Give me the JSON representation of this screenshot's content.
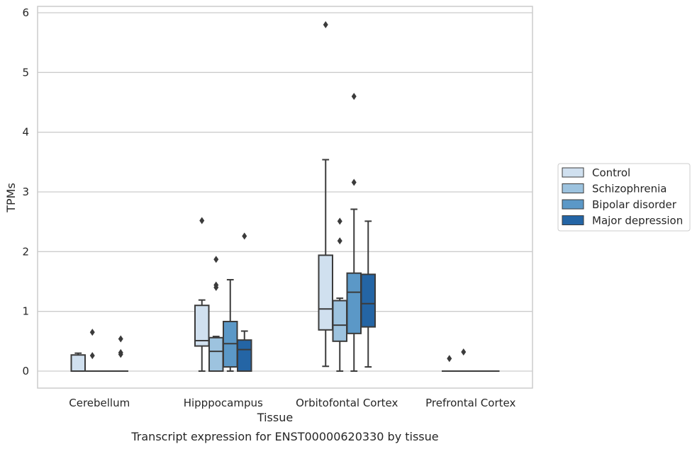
{
  "chart_data": {
    "type": "box",
    "caption": "Transcript expression for ENST00000620330 by tissue",
    "xlabel": "Tissue",
    "ylabel": "TPMs",
    "ylim": [
      -0.28,
      6.1
    ],
    "yticks": [
      0,
      1,
      2,
      3,
      4,
      5,
      6
    ],
    "grid": true,
    "legend_position": "right",
    "categories": [
      "Cerebellum",
      "Hipppocampus",
      "Orbitofontal Cortex",
      "Prefrontal Cortex"
    ],
    "series": [
      {
        "name": "Control",
        "color": "#d0e0ef",
        "boxes": [
          {
            "min": 0,
            "q1": 0,
            "median": 0,
            "q3": 0.27,
            "max": 0.3,
            "outliers": []
          },
          {
            "min": 0,
            "q1": 0.42,
            "median": 0.51,
            "q3": 1.1,
            "max": 1.19,
            "outliers": [
              2.52
            ]
          },
          {
            "min": 0.08,
            "q1": 0.69,
            "median": 1.04,
            "q3": 1.94,
            "max": 3.54,
            "outliers": [
              5.8
            ]
          },
          {
            "min": 0,
            "q1": 0,
            "median": 0,
            "q3": 0,
            "max": 0,
            "outliers": [
              0.21
            ]
          }
        ]
      },
      {
        "name": "Schizophrenia",
        "color": "#9dc3df",
        "boxes": [
          {
            "min": 0,
            "q1": 0,
            "median": 0,
            "q3": 0,
            "max": 0,
            "outliers": [
              0.65,
              0.26
            ]
          },
          {
            "min": 0,
            "q1": 0,
            "median": 0.33,
            "q3": 0.56,
            "max": 0.58,
            "outliers": [
              1.87,
              1.44,
              1.4
            ]
          },
          {
            "min": 0,
            "q1": 0.5,
            "median": 0.77,
            "q3": 1.18,
            "max": 1.22,
            "outliers": [
              2.51,
              2.18
            ]
          },
          {
            "min": 0,
            "q1": 0,
            "median": 0,
            "q3": 0,
            "max": 0,
            "outliers": [
              0.32
            ]
          }
        ]
      },
      {
        "name": "Bipolar disorder",
        "color": "#5b98c7",
        "boxes": [
          {
            "min": 0,
            "q1": 0,
            "median": 0,
            "q3": 0,
            "max": 0,
            "outliers": []
          },
          {
            "min": 0,
            "q1": 0.07,
            "median": 0.46,
            "q3": 0.83,
            "max": 1.53,
            "outliers": []
          },
          {
            "min": 0,
            "q1": 0.63,
            "median": 1.32,
            "q3": 1.64,
            "max": 2.71,
            "outliers": [
              4.6,
              3.16
            ]
          },
          {
            "min": 0,
            "q1": 0,
            "median": 0,
            "q3": 0,
            "max": 0,
            "outliers": []
          }
        ]
      },
      {
        "name": "Major depression",
        "color": "#2465a5",
        "boxes": [
          {
            "min": 0,
            "q1": 0,
            "median": 0,
            "q3": 0,
            "max": 0,
            "outliers": [
              0.54,
              0.31,
              0.28
            ]
          },
          {
            "min": 0,
            "q1": 0,
            "median": 0.36,
            "q3": 0.52,
            "max": 0.67,
            "outliers": [
              2.26
            ]
          },
          {
            "min": 0.07,
            "q1": 0.74,
            "median": 1.13,
            "q3": 1.62,
            "max": 2.51,
            "outliers": []
          },
          {
            "min": 0,
            "q1": 0,
            "median": 0,
            "q3": 0,
            "max": 0,
            "outliers": []
          }
        ]
      }
    ]
  }
}
